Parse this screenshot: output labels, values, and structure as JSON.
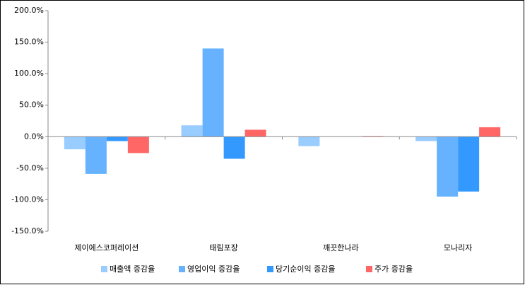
{
  "chart_data": {
    "type": "bar",
    "categories": [
      "제이에스코퍼레이션",
      "태림포장",
      "깨끗한나라",
      "모나리자"
    ],
    "series": [
      {
        "name": "매출액 증감율",
        "color": "#99ccff",
        "values": [
          -20,
          18,
          -15,
          -7
        ]
      },
      {
        "name": "영업이익 증감율",
        "color": "#66b2ff",
        "values": [
          -59,
          140,
          0,
          -95
        ]
      },
      {
        "name": "당기순이익 증감율",
        "color": "#3399ff",
        "values": [
          -7,
          -35,
          0,
          -87
        ]
      },
      {
        "name": "주가 증감율",
        "color": "#ff6666",
        "values": [
          -26,
          11,
          1,
          15
        ]
      }
    ],
    "ylim": [
      -150,
      200
    ],
    "yticks": [
      {
        "value": -150,
        "label": "-150.0%"
      },
      {
        "value": -100,
        "label": "-100.0%"
      },
      {
        "value": -50,
        "label": "-50.0%"
      },
      {
        "value": 0,
        "label": "0.0%"
      },
      {
        "value": 50,
        "label": "50.0%"
      },
      {
        "value": 100,
        "label": "100.0%"
      },
      {
        "value": 150,
        "label": "150.0%"
      },
      {
        "value": 200,
        "label": "200.0%"
      }
    ],
    "legend": "bottom"
  }
}
